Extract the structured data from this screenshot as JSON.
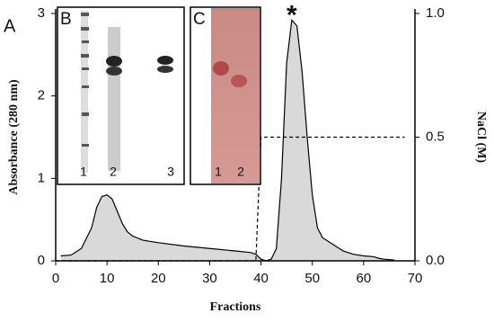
{
  "chart_data": {
    "type": "line",
    "panel_label": "A",
    "x_label": "Fractions",
    "y_label": "Absorbance (280 nm)",
    "y2_label": "NaCl (M)",
    "xlim": [
      0,
      70
    ],
    "xticks": [
      0,
      10,
      20,
      30,
      40,
      50,
      60,
      70
    ],
    "ylim": [
      0,
      3
    ],
    "yticks": [
      0,
      1,
      2,
      3
    ],
    "y2lim": [
      0,
      1
    ],
    "y2ticks": [
      {
        "value": 0,
        "label": "0.0"
      },
      {
        "value": 0.5,
        "label": "0.5"
      },
      {
        "value": 1,
        "label": "1.0"
      }
    ],
    "series": [
      {
        "color": "#000000",
        "fill": "#d9d9d9",
        "line_style": "solid",
        "x": [
          1,
          3,
          5,
          7,
          8,
          9,
          10,
          11,
          12,
          13,
          14,
          15,
          17,
          20,
          25,
          30,
          35,
          38,
          39,
          40,
          41,
          42,
          43,
          44,
          45,
          46,
          47,
          48,
          49,
          50,
          51,
          52,
          54,
          56,
          58,
          60,
          62,
          63,
          64,
          66
        ],
        "values": [
          0.06,
          0.07,
          0.15,
          0.4,
          0.65,
          0.78,
          0.8,
          0.75,
          0.6,
          0.45,
          0.35,
          0.3,
          0.25,
          0.22,
          0.18,
          0.15,
          0.12,
          0.1,
          0.08,
          0.02,
          0.0,
          0.02,
          0.15,
          1.0,
          2.4,
          2.92,
          2.85,
          2.3,
          1.5,
          0.8,
          0.4,
          0.28,
          0.2,
          0.12,
          0.08,
          0.06,
          0.05,
          0.03,
          0.02,
          0.01
        ]
      },
      {
        "color": "#000000",
        "line_style": "dashed",
        "axis": "y2",
        "x": [
          0,
          39,
          40,
          68
        ],
        "values": [
          0,
          0,
          0.5,
          0.5
        ]
      }
    ],
    "annotations": [
      {
        "text": "*",
        "x": 46,
        "y": 2.92
      }
    ],
    "insets": [
      {
        "label": "B",
        "lanes": [
          "1",
          "2",
          "3"
        ]
      },
      {
        "label": "C",
        "lanes": [
          "1",
          "2"
        ]
      }
    ]
  }
}
